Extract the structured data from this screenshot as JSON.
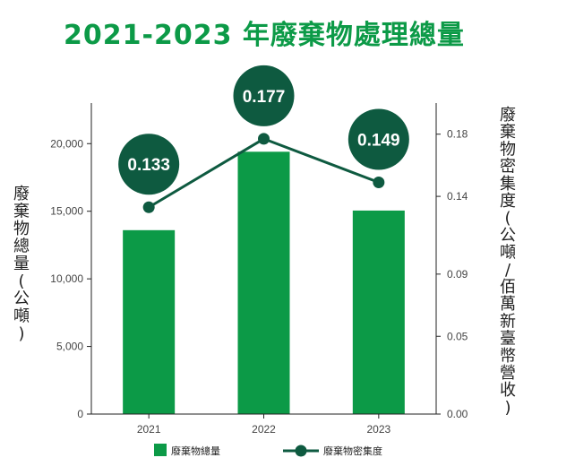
{
  "title": "2021-2023 年廢棄物處理總量",
  "colors": {
    "bar": "#0c9a47",
    "line": "#0e5a40",
    "bubble": "#0e5a40",
    "axis": "#222222"
  },
  "chart_data": {
    "type": "bar",
    "categories": [
      "2021",
      "2022",
      "2023"
    ],
    "series": [
      {
        "name": "廢棄物總量",
        "type": "bar",
        "axis": "left",
        "values": [
          13600,
          19400,
          15050
        ]
      },
      {
        "name": "廢棄物密集度",
        "type": "line",
        "axis": "right",
        "values": [
          0.133,
          0.177,
          0.149
        ]
      }
    ],
    "data_labels": [
      "0.133",
      "0.177",
      "0.149"
    ],
    "ylabel": "廢棄物總量(公噸)",
    "ylabel_right": "廢棄物密集度(公噸/佰萬新臺幣營收)",
    "ylim": [
      0,
      23000
    ],
    "ylim_right": [
      0,
      0.2
    ],
    "yticks": [
      0,
      5000,
      10000,
      15000,
      20000
    ],
    "yticks_labels": [
      "0",
      "5,000",
      "10,000",
      "15,000",
      "20,000"
    ],
    "yticks_right": [
      0,
      0.05,
      0.09,
      0.14,
      0.18
    ],
    "yticks_right_labels": [
      "0.00",
      "0.05",
      "0.09",
      "0.14",
      "0.18"
    ],
    "legend": [
      "廢棄物總量",
      "廢棄物密集度"
    ],
    "legend_position": "bottom",
    "grid": false
  }
}
